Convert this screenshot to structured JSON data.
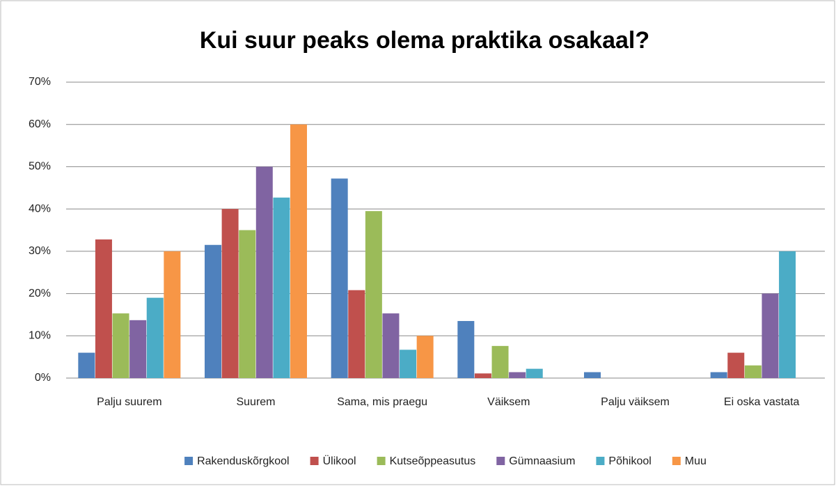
{
  "chart_data": {
    "type": "bar",
    "title": "Kui suur peaks olema praktika osakaal?",
    "categories": [
      "Palju suurem",
      "Suurem",
      "Sama, mis praegu",
      "Väiksem",
      "Palju väiksem",
      "Ei oska vastata"
    ],
    "series": [
      {
        "name": "Rakenduskõrgkool",
        "color": "#4f81bd",
        "values": [
          6,
          31.5,
          47.2,
          13.5,
          1.4,
          1.4
        ]
      },
      {
        "name": "Ülikool",
        "color": "#c0504d",
        "values": [
          32.8,
          40,
          20.8,
          1.1,
          0,
          6
        ]
      },
      {
        "name": "Kutseõppeasutus",
        "color": "#9bbb59",
        "values": [
          15.3,
          35,
          39.5,
          7.6,
          0,
          3
        ]
      },
      {
        "name": "Gümnaasium",
        "color": "#8064a2",
        "values": [
          13.7,
          50,
          15.3,
          1.4,
          0,
          20
        ]
      },
      {
        "name": "Põhikool",
        "color": "#4bacc6",
        "values": [
          19,
          42.7,
          6.7,
          2.2,
          0,
          30
        ]
      },
      {
        "name": "Muu",
        "color": "#f79646",
        "values": [
          30,
          60,
          10,
          0,
          0,
          0
        ]
      }
    ],
    "ylim": [
      0,
      70
    ],
    "yticks": [
      {
        "value": 0,
        "label": "0%"
      },
      {
        "value": 10,
        "label": "10%"
      },
      {
        "value": 20,
        "label": "20%"
      },
      {
        "value": 30,
        "label": "30%"
      },
      {
        "value": 40,
        "label": "40%"
      },
      {
        "value": 50,
        "label": "50%"
      },
      {
        "value": 60,
        "label": "60%"
      },
      {
        "value": 70,
        "label": "70%"
      }
    ],
    "grid": true,
    "legend": "bottom"
  }
}
